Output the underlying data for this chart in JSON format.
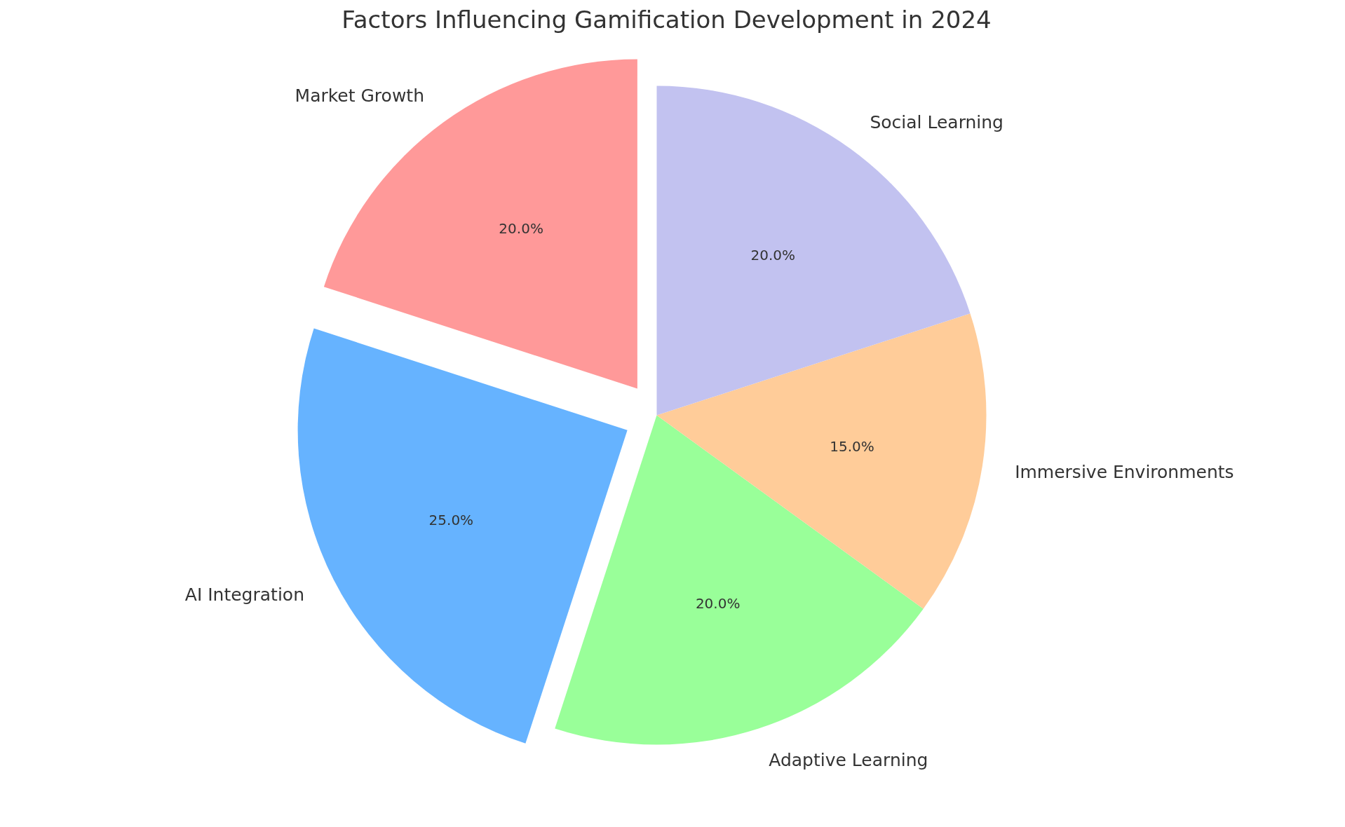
{
  "chart_data": {
    "type": "pie",
    "title": "Factors Influencing Gamification Development in 2024",
    "categories": [
      "Market Growth",
      "AI Integration",
      "Adaptive Learning",
      "Immersive Environments",
      "Social Learning"
    ],
    "values": [
      20,
      25,
      20,
      15,
      20
    ],
    "colors": [
      "#ff9999",
      "#66b3ff",
      "#99ff99",
      "#ffcc99",
      "#c2c2f0"
    ],
    "value_labels": [
      "20.0%",
      "25.0%",
      "20.0%",
      "15.0%",
      "20.0%"
    ]
  }
}
